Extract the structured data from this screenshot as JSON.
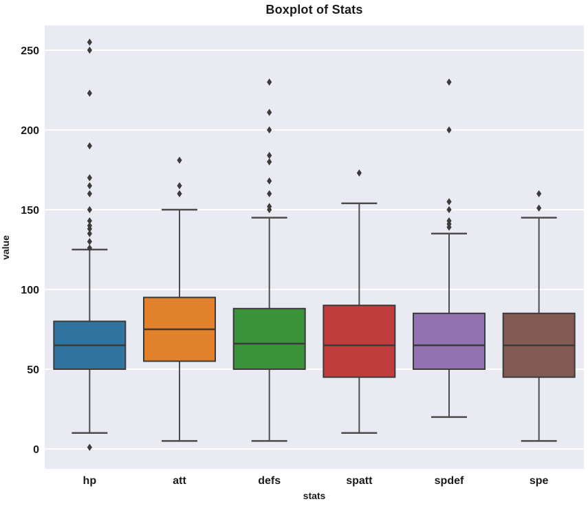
{
  "figure": {
    "title": "Boxplot of Stats",
    "xlabel": "stats",
    "ylabel": "value"
  },
  "chart_data": {
    "type": "boxplot",
    "title": "Boxplot of Stats",
    "xlabel": "stats",
    "ylabel": "value",
    "categories": [
      "hp",
      "att",
      "defs",
      "spatt",
      "spdef",
      "spe"
    ],
    "yticks": [
      0,
      50,
      100,
      150,
      200,
      250
    ],
    "ylim": [
      -12.5,
      265.5
    ],
    "grid": "horizontal",
    "legend": "none",
    "boxes": [
      {
        "category": "hp",
        "color": "#3274A1",
        "whisker_low": 10,
        "q1": 50,
        "median": 65,
        "q3": 80,
        "whisker_high": 125,
        "outliers_below": [
          1
        ],
        "outliers_above": [
          126,
          130,
          135,
          138,
          140,
          143,
          150,
          160,
          165,
          170,
          190,
          223,
          250,
          255
        ]
      },
      {
        "category": "att",
        "color": "#E1812C",
        "whisker_low": 5,
        "q1": 55,
        "median": 75,
        "q3": 95,
        "whisker_high": 150,
        "outliers_below": [],
        "outliers_above": [
          160,
          165,
          181
        ]
      },
      {
        "category": "defs",
        "color": "#3A923A",
        "whisker_low": 5,
        "q1": 50,
        "median": 66,
        "q3": 88,
        "whisker_high": 145,
        "outliers_below": [],
        "outliers_above": [
          150,
          152,
          160,
          168,
          180,
          184,
          200,
          211,
          230
        ]
      },
      {
        "category": "spatt",
        "color": "#C03D3E",
        "whisker_low": 10,
        "q1": 45,
        "median": 65,
        "q3": 90,
        "whisker_high": 154,
        "outliers_below": [],
        "outliers_above": [
          173
        ]
      },
      {
        "category": "spdef",
        "color": "#9372B2",
        "whisker_low": 20,
        "q1": 50,
        "median": 65,
        "q3": 85,
        "whisker_high": 135,
        "outliers_below": [],
        "outliers_above": [
          139,
          141,
          143,
          150,
          155,
          200,
          230
        ]
      },
      {
        "category": "spe",
        "color": "#845B53",
        "whisker_low": 5,
        "q1": 45,
        "median": 65,
        "q3": 85,
        "whisker_high": 145,
        "outliers_below": [],
        "outliers_above": [
          151,
          160
        ]
      }
    ],
    "style": {
      "plot_bg": "#EAEAF2",
      "fig_bg": "#FFFFFF",
      "grid_color": "#FFFFFF",
      "box_edge_color": "#3A3A3A",
      "whisker_color": "#4C4C4C",
      "flier_color": "#3C3C3C",
      "text_color": "#1A1A1A"
    }
  }
}
